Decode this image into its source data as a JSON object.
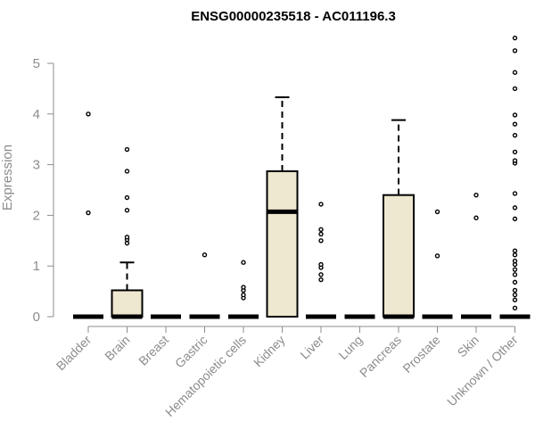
{
  "chart_data": {
    "type": "box",
    "title": "ENSG00000235518 - AC011196.3",
    "xlabel": "",
    "ylabel": "Expression",
    "ylim": [
      0,
      5.5
    ],
    "yticks": [
      0,
      1,
      2,
      3,
      4,
      5
    ],
    "box_fill": "#efe8d0",
    "box_stroke": "#000000",
    "categories": [
      "Bladder",
      "Brain",
      "Breast",
      "Gastric",
      "Hematopoietic cells",
      "Kidney",
      "Liver",
      "Lung",
      "Pancreas",
      "Prostate",
      "Skin",
      "Unknown / Other"
    ],
    "boxes": [
      {
        "q1": 0,
        "median": 0,
        "q3": 0,
        "whisker_low": 0,
        "whisker_high": 0,
        "outliers": [
          2.05,
          4.0
        ]
      },
      {
        "q1": 0,
        "median": 0,
        "q3": 0.52,
        "whisker_low": 0,
        "whisker_high": 1.07,
        "outliers": [
          1.45,
          1.52,
          1.57,
          2.1,
          2.35,
          2.87,
          3.3
        ]
      },
      {
        "q1": 0,
        "median": 0,
        "q3": 0,
        "whisker_low": 0,
        "whisker_high": 0,
        "outliers": []
      },
      {
        "q1": 0,
        "median": 0,
        "q3": 0,
        "whisker_low": 0,
        "whisker_high": 0,
        "outliers": [
          1.22
        ]
      },
      {
        "q1": 0,
        "median": 0,
        "q3": 0,
        "whisker_low": 0,
        "whisker_high": 0,
        "outliers": [
          0.37,
          0.43,
          0.52,
          0.58,
          1.07
        ]
      },
      {
        "q1": 0,
        "median": 2.07,
        "q3": 2.87,
        "whisker_low": 0,
        "whisker_high": 4.33,
        "outliers": []
      },
      {
        "q1": 0,
        "median": 0,
        "q3": 0,
        "whisker_low": 0,
        "whisker_high": 0,
        "outliers": [
          0.73,
          0.83,
          0.97,
          1.03,
          1.5,
          1.63,
          1.72,
          2.22
        ]
      },
      {
        "q1": 0,
        "median": 0,
        "q3": 0,
        "whisker_low": 0,
        "whisker_high": 0,
        "outliers": []
      },
      {
        "q1": 0,
        "median": 0,
        "q3": 2.4,
        "whisker_low": 0,
        "whisker_high": 3.88,
        "outliers": []
      },
      {
        "q1": 0,
        "median": 0,
        "q3": 0,
        "whisker_low": 0,
        "whisker_high": 0,
        "outliers": [
          1.2,
          2.07
        ]
      },
      {
        "q1": 0,
        "median": 0,
        "q3": 0,
        "whisker_low": 0,
        "whisker_high": 0,
        "outliers": [
          1.95,
          2.4
        ]
      },
      {
        "q1": 0,
        "median": 0,
        "q3": 0,
        "whisker_low": 0,
        "whisker_high": 0,
        "outliers": [
          0.17,
          0.33,
          0.43,
          0.52,
          0.68,
          0.83,
          0.93,
          1.03,
          1.1,
          1.22,
          1.3,
          1.93,
          2.15,
          2.43,
          3.03,
          3.08,
          3.25,
          3.58,
          3.8,
          3.98,
          4.5,
          4.82,
          5.25,
          5.5
        ]
      }
    ]
  }
}
